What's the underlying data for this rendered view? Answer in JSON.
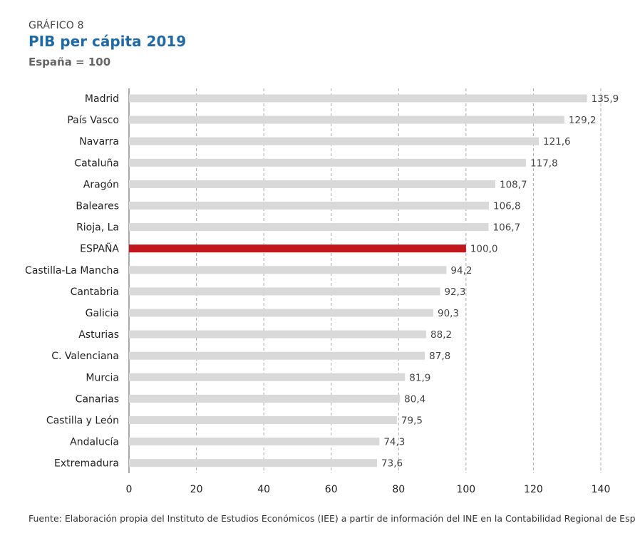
{
  "header": {
    "kicker": "GRÁFICO 8",
    "title": "PIB per cápita 2019",
    "subtitle": "España = 100"
  },
  "footer": {
    "source": "Fuente: Elaboración propia del Instituto de Estudios Económicos (IEE) a partir de información del INE en la Contabilidad Regional de España."
  },
  "colors": {
    "bar": "#d9d9d9",
    "highlight": "#c0161c",
    "grid": "#aaaaaa",
    "value_label": "#444444"
  },
  "chart_data": {
    "type": "bar",
    "orientation": "horizontal",
    "title": "PIB per cápita 2019",
    "subtitle": "España = 100",
    "categories": [
      "Madrid",
      "País Vasco",
      "Navarra",
      "Cataluña",
      "Aragón",
      "Baleares",
      "Rioja, La",
      "ESPAÑA",
      "Castilla-La Mancha",
      "Cantabria",
      "Galicia",
      "Asturias",
      "C. Valenciana",
      "Murcia",
      "Canarias",
      "Castilla y León",
      "Andalucía",
      "Extremadura"
    ],
    "values": [
      135.9,
      129.2,
      121.6,
      117.8,
      108.7,
      106.8,
      106.7,
      100.0,
      94.2,
      92.3,
      90.3,
      88.2,
      87.8,
      81.9,
      80.4,
      79.5,
      74.3,
      73.6
    ],
    "value_labels": [
      "135,9",
      "129,2",
      "121,6",
      "117,8",
      "108,7",
      "106,8",
      "106,7",
      "100,0",
      "94,2",
      "92,3",
      "90,3",
      "88,2",
      "87,8",
      "81,9",
      "80,4",
      "79,5",
      "74,3",
      "73,6"
    ],
    "highlight_category": "ESPAÑA",
    "xlim": [
      0,
      140
    ],
    "xticks": [
      0,
      20,
      40,
      60,
      80,
      100,
      120,
      140
    ],
    "xlabel": "",
    "ylabel": "",
    "grid": "vertical dashed"
  }
}
